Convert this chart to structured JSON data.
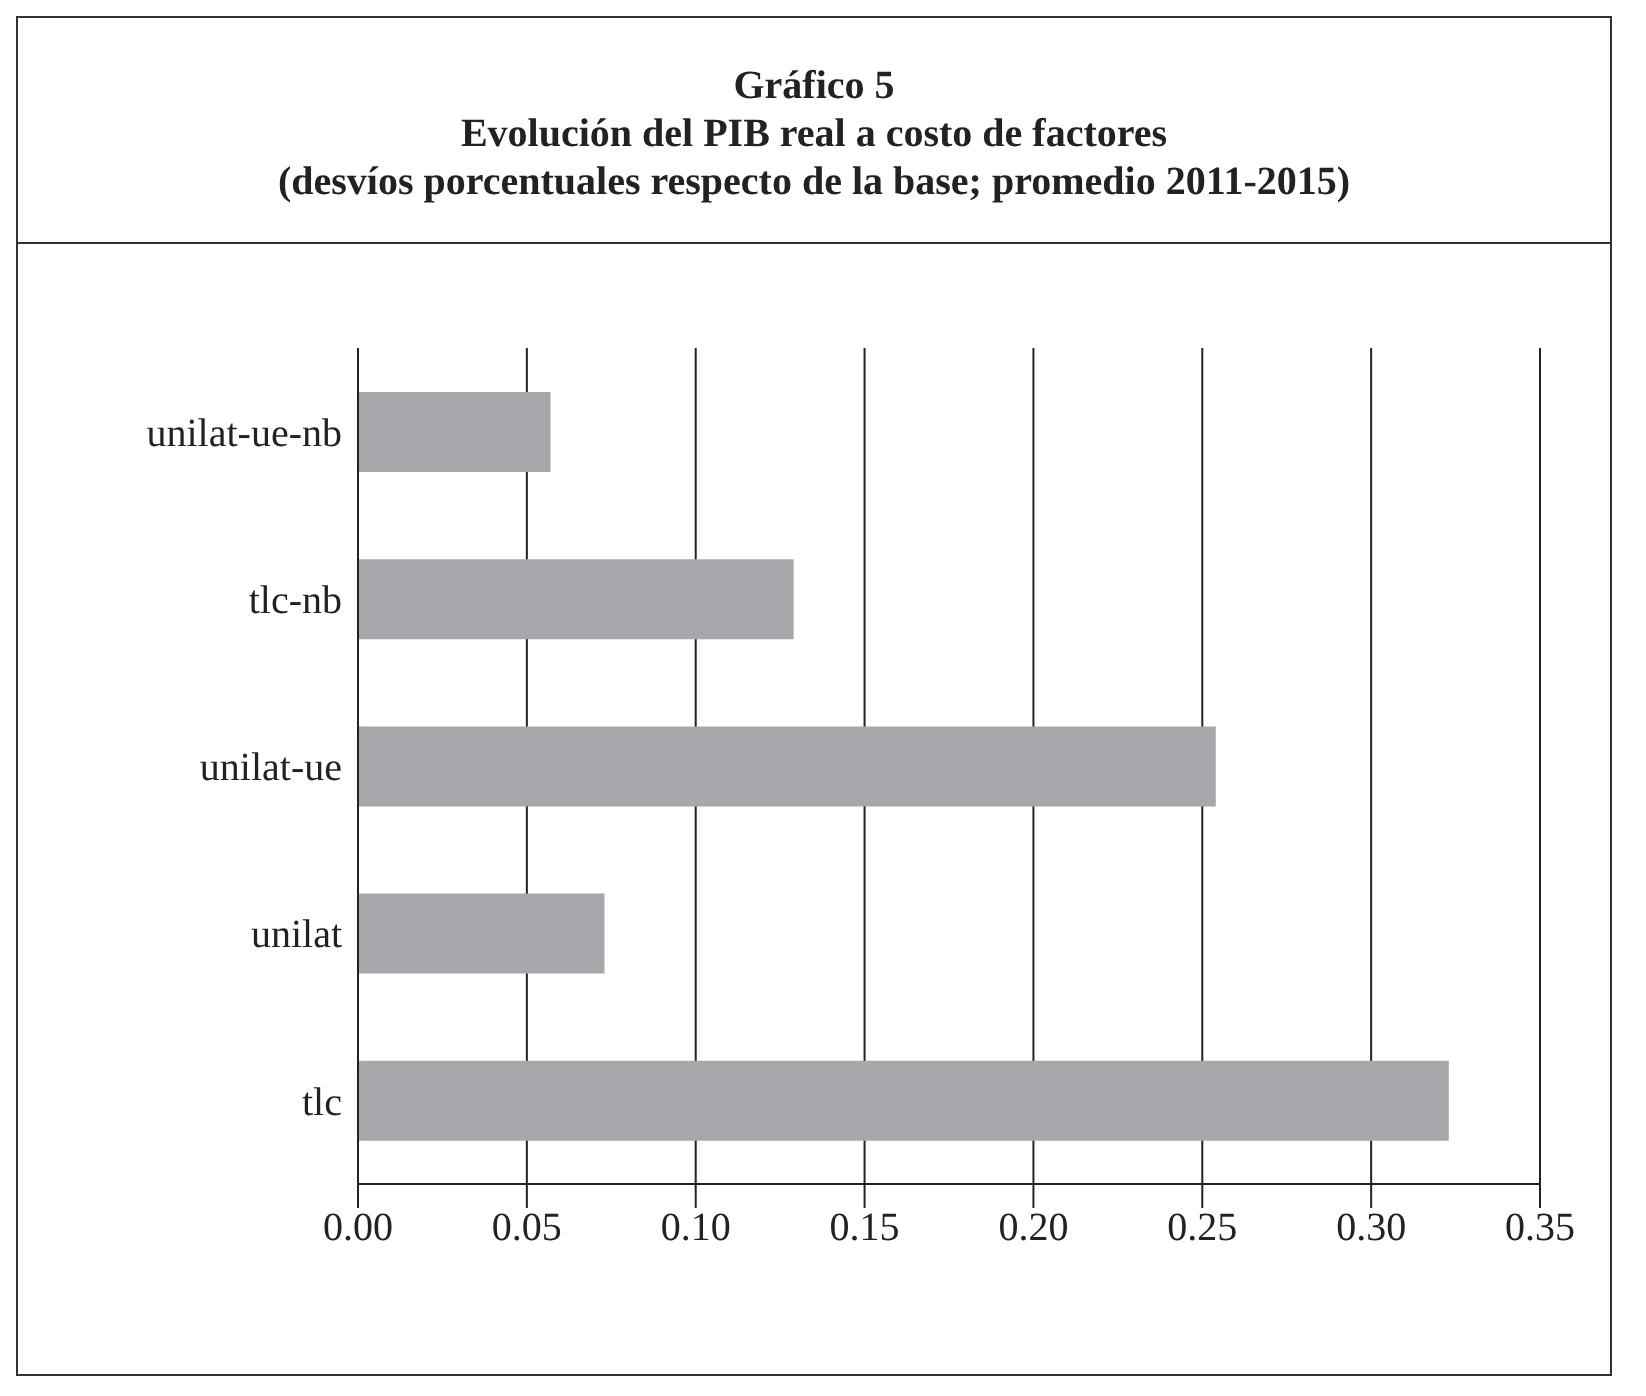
{
  "chart_data": {
    "type": "bar",
    "orientation": "horizontal",
    "title": "Gráfico 5",
    "subtitle": "Evolución del PIB real a costo de factores\n(desvíos porcentuales respecto de la base; promedio 2011-2015)",
    "categories": [
      "unilat-ue-nb",
      "tlc-nb",
      "unilat-ue",
      "unilat",
      "tlc"
    ],
    "values": [
      0.057,
      0.129,
      0.254,
      0.073,
      0.323
    ],
    "color": "#a7a8ab",
    "xlim": [
      0,
      0.35
    ],
    "xticks": [
      {
        "value": 0,
        "label": "0.00"
      },
      {
        "value": 0.05,
        "label": "0.05"
      },
      {
        "value": 0.1,
        "label": "0.10"
      },
      {
        "value": 0.15,
        "label": "0.15"
      },
      {
        "value": 0.2,
        "label": "0.20"
      },
      {
        "value": 0.25,
        "label": "0.25"
      },
      {
        "value": 0.3,
        "label": "0.30"
      },
      {
        "value": 0.35,
        "label": "0.35"
      }
    ],
    "grid": "x",
    "legend": false
  }
}
